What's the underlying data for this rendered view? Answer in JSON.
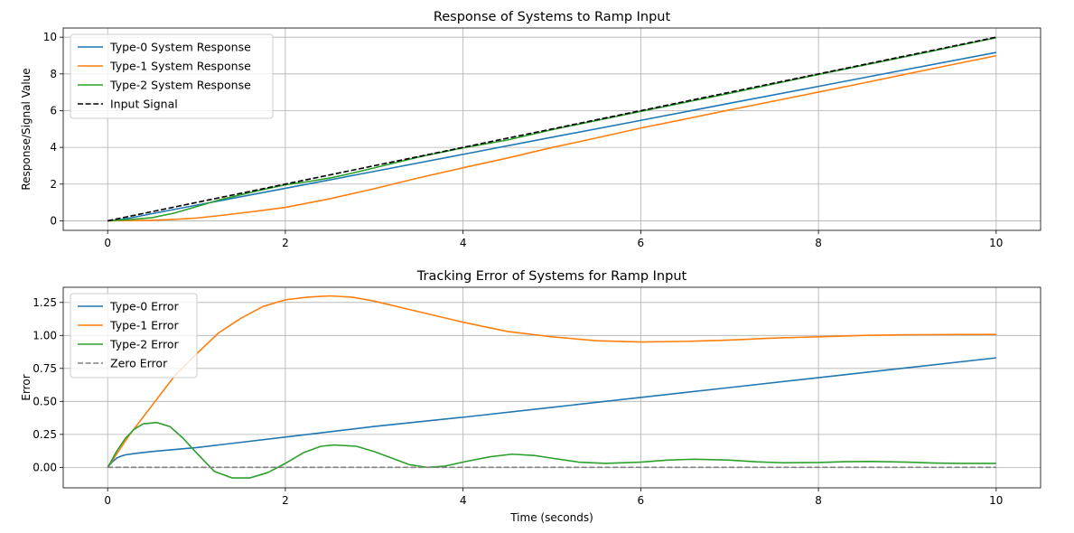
{
  "chart_data": [
    {
      "type": "line",
      "title": "Response of Systems to Ramp Input",
      "xlabel": "",
      "ylabel": "Response/Signal Value",
      "xlim": [
        -0.5,
        10.5
      ],
      "ylim": [
        -0.52,
        10.5
      ],
      "xticks": [
        0,
        2,
        4,
        6,
        8,
        10
      ],
      "yticks": [
        0,
        2,
        4,
        6,
        8,
        10
      ],
      "xtick_labels": [
        "0",
        "2",
        "4",
        "6",
        "8",
        "10"
      ],
      "ytick_labels": [
        "0",
        "2",
        "4",
        "6",
        "8",
        "10"
      ],
      "grid": true,
      "legend_position": "top-left",
      "series": [
        {
          "name": "Type-0 System Response",
          "color": "#1f77b4",
          "dash": "solid",
          "x": [
            0,
            0.1,
            0.2,
            0.3,
            0.5,
            1,
            2,
            3,
            4,
            5,
            6,
            7,
            8,
            9,
            10
          ],
          "y": [
            0,
            0.03,
            0.11,
            0.2,
            0.39,
            0.85,
            1.77,
            2.69,
            3.62,
            4.55,
            5.47,
            6.4,
            7.32,
            8.25,
            9.17
          ]
        },
        {
          "name": "Type-1 System Response",
          "color": "#ff7f0e",
          "dash": "solid",
          "x": [
            0,
            0.25,
            0.5,
            0.75,
            1,
            1.25,
            1.5,
            1.75,
            2,
            2.5,
            3,
            3.5,
            4,
            4.5,
            5,
            5.5,
            6,
            6.5,
            7,
            7.5,
            8,
            8.5,
            9,
            9.5,
            10
          ],
          "y": [
            0,
            0.01,
            0.03,
            0.08,
            0.15,
            0.28,
            0.42,
            0.57,
            0.73,
            1.2,
            1.75,
            2.34,
            2.89,
            3.42,
            3.99,
            4.51,
            5.05,
            5.54,
            6.04,
            6.52,
            7.01,
            7.5,
            8.0,
            8.5,
            8.99
          ]
        },
        {
          "name": "Type-2 System Response",
          "color": "#2ca02c",
          "dash": "solid",
          "x": [
            0,
            0.25,
            0.5,
            0.75,
            1,
            1.25,
            1.5,
            1.75,
            2,
            2.25,
            2.5,
            2.75,
            3,
            3.5,
            4,
            4.5,
            5,
            6,
            7,
            8,
            9,
            10
          ],
          "y": [
            0,
            0.07,
            0.17,
            0.42,
            0.77,
            1.13,
            1.42,
            1.7,
            1.96,
            2.13,
            2.33,
            2.59,
            2.88,
            3.47,
            3.97,
            4.4,
            4.96,
            5.96,
            6.94,
            7.97,
            8.96,
            9.97
          ]
        },
        {
          "name": "Input Signal",
          "color": "#000000",
          "dash": "dashed",
          "x": [
            0,
            10
          ],
          "y": [
            0,
            10
          ]
        }
      ]
    },
    {
      "type": "line",
      "title": "Tracking Error of Systems for Ramp Input",
      "xlabel": "Time (seconds)",
      "ylabel": "Error",
      "xlim": [
        -0.5,
        10.5
      ],
      "ylim": [
        -0.155,
        1.365
      ],
      "xticks": [
        0,
        2,
        4,
        6,
        8,
        10
      ],
      "yticks": [
        0,
        0.25,
        0.5,
        0.75,
        1.0,
        1.25
      ],
      "xtick_labels": [
        "0",
        "2",
        "4",
        "6",
        "8",
        "10"
      ],
      "ytick_labels": [
        "0.00",
        "0.25",
        "0.50",
        "0.75",
        "1.00",
        "1.25"
      ],
      "grid": true,
      "legend_position": "top-left",
      "series": [
        {
          "name": "Type-0 Error",
          "color": "#1f77b4",
          "dash": "solid",
          "x": [
            0,
            0.05,
            0.1,
            0.15,
            0.2,
            0.3,
            0.5,
            1,
            2,
            3,
            4,
            5,
            6,
            7,
            8,
            9,
            10
          ],
          "y": [
            0,
            0.04,
            0.07,
            0.085,
            0.095,
            0.105,
            0.12,
            0.15,
            0.23,
            0.31,
            0.38,
            0.455,
            0.53,
            0.605,
            0.68,
            0.755,
            0.83
          ]
        },
        {
          "name": "Type-1 Error",
          "color": "#ff7f0e",
          "dash": "solid",
          "x": [
            0,
            0.25,
            0.5,
            0.75,
            1,
            1.25,
            1.5,
            1.75,
            2,
            2.25,
            2.5,
            2.75,
            3,
            3.5,
            4,
            4.5,
            5,
            5.5,
            6,
            6.5,
            7,
            7.5,
            8,
            8.5,
            9,
            9.5,
            10
          ],
          "y": [
            0,
            0.25,
            0.47,
            0.69,
            0.86,
            1.02,
            1.13,
            1.22,
            1.27,
            1.29,
            1.3,
            1.29,
            1.26,
            1.18,
            1.1,
            1.03,
            0.99,
            0.96,
            0.95,
            0.955,
            0.965,
            0.98,
            0.99,
            1.0,
            1.005,
            1.007,
            1.008
          ]
        },
        {
          "name": "Type-2 Error",
          "color": "#2ca02c",
          "dash": "solid",
          "x": [
            0,
            0.1,
            0.2,
            0.3,
            0.4,
            0.55,
            0.7,
            0.85,
            1,
            1.2,
            1.4,
            1.6,
            1.8,
            2,
            2.2,
            2.4,
            2.55,
            2.8,
            3,
            3.2,
            3.4,
            3.6,
            3.8,
            4,
            4.3,
            4.55,
            4.8,
            5,
            5.3,
            5.6,
            6,
            6.3,
            6.6,
            7,
            7.3,
            7.6,
            8,
            8.3,
            8.6,
            9,
            9.3,
            9.6,
            10
          ],
          "y": [
            0,
            0.12,
            0.22,
            0.29,
            0.33,
            0.34,
            0.31,
            0.22,
            0.11,
            -0.03,
            -0.08,
            -0.08,
            -0.04,
            0.03,
            0.11,
            0.16,
            0.17,
            0.16,
            0.12,
            0.07,
            0.02,
            0.0,
            0.01,
            0.04,
            0.08,
            0.1,
            0.09,
            0.07,
            0.04,
            0.03,
            0.04,
            0.055,
            0.062,
            0.055,
            0.042,
            0.035,
            0.037,
            0.043,
            0.045,
            0.04,
            0.033,
            0.03,
            0.03
          ]
        },
        {
          "name": "Zero Error",
          "color": "#808080",
          "dash": "dashed",
          "x": [
            0,
            10
          ],
          "y": [
            0,
            0
          ]
        }
      ]
    }
  ]
}
